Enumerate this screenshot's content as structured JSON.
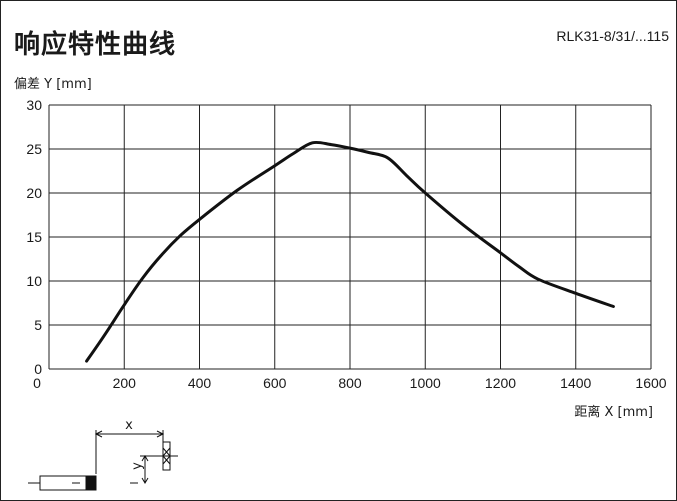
{
  "header": {
    "title": "响应特性曲线",
    "model": "RLK31-8/31/...115"
  },
  "chart_data": {
    "type": "line",
    "xlabel": "距离 X [mm]",
    "ylabel": "偏差 Y [mm]",
    "xlim": [
      0,
      1600
    ],
    "ylim": [
      0,
      30
    ],
    "x_ticks": [
      0,
      200,
      400,
      600,
      800,
      1000,
      1200,
      1400,
      1600
    ],
    "y_ticks": [
      0,
      5,
      10,
      15,
      20,
      25,
      30
    ],
    "grid": true,
    "series": [
      {
        "x": [
          100,
          150,
          200,
          250,
          300,
          350,
          400,
          500,
          600,
          650,
          700,
          750,
          800,
          850,
          900,
          950,
          1000,
          1100,
          1200,
          1250,
          1300,
          1400,
          1500
        ],
        "y": [
          0.9,
          4.0,
          7.3,
          10.4,
          13.0,
          15.2,
          17.0,
          20.3,
          23.1,
          24.5,
          25.7,
          25.5,
          25.1,
          24.6,
          24.0,
          22.0,
          20.0,
          16.4,
          13.2,
          11.6,
          10.2,
          8.6,
          7.1
        ],
        "color": "#111111"
      }
    ]
  },
  "diagram": {
    "x_label": "x",
    "y_label": "y"
  }
}
